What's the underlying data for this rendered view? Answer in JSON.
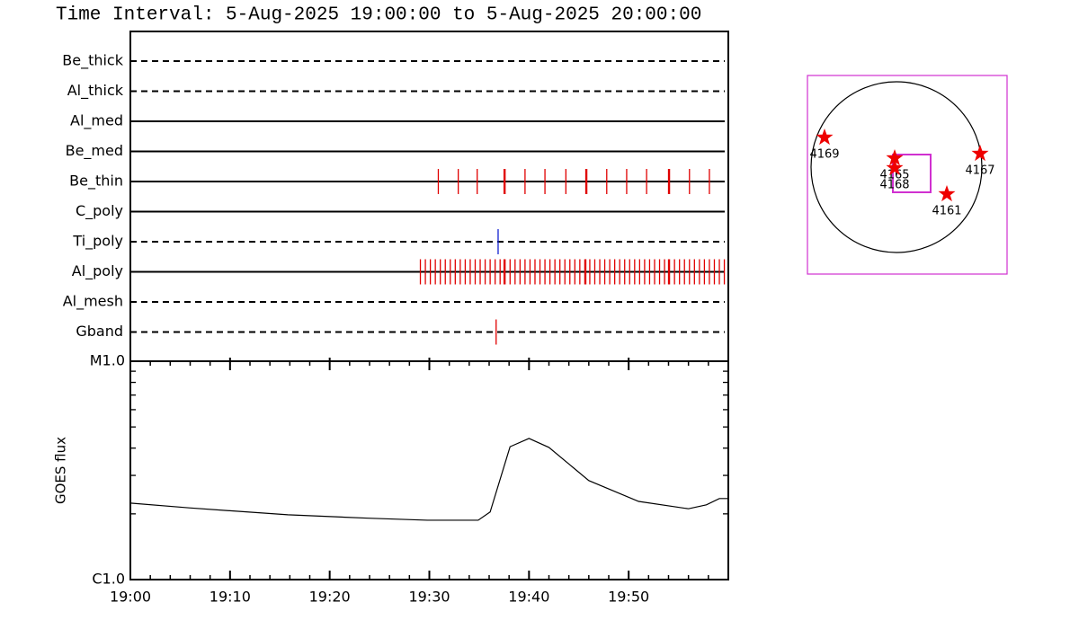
{
  "chart_data": [
    {
      "type": "timeline",
      "title": "Time Interval:  5-Aug-2025 19:00:00 to  5-Aug-2025 20:00:00",
      "categories": [
        "Be_thick",
        "Al_thick",
        "Al_med",
        "Be_med",
        "Be_thin",
        "C_poly",
        "Ti_poly",
        "Al_poly",
        "Al_mesh",
        "Gband"
      ],
      "line_styles": [
        "dashed",
        "dashed",
        "solid",
        "solid",
        "solid",
        "solid",
        "dashed",
        "solid",
        "dashed",
        "dashed"
      ],
      "event_colors": [
        "#e00000",
        "#e00000",
        "#e00000",
        "#e00000",
        "#e00000",
        "#e00000",
        "#1020d0",
        "#e00000",
        "#e00000",
        "#e00000"
      ],
      "xlim": [
        0,
        60
      ],
      "events": [
        [],
        [],
        [],
        [],
        [
          30.9,
          32.9,
          34.8,
          37.5,
          37.6,
          39.6,
          41.6,
          43.7,
          45.7,
          45.8,
          47.8,
          49.8,
          51.8,
          54.0,
          54.1,
          56.1,
          58.1
        ],
        [],
        [
          36.9
        ],
        [
          29.1,
          29.6,
          30.1,
          30.6,
          31.1,
          31.6,
          32.1,
          32.6,
          33.1,
          33.6,
          34.1,
          34.6,
          35.1,
          35.6,
          36.1,
          36.6,
          37.1,
          37.5,
          37.6,
          38.1,
          38.6,
          39.1,
          39.6,
          40.1,
          40.6,
          41.1,
          41.6,
          42.1,
          42.6,
          43.1,
          43.6,
          44.1,
          44.6,
          45.1,
          45.6,
          45.7,
          46.1,
          46.6,
          47.1,
          47.6,
          48.1,
          48.6,
          49.1,
          49.6,
          50.1,
          50.6,
          51.1,
          51.6,
          52.1,
          52.6,
          53.1,
          53.6,
          54.0,
          54.1,
          54.6,
          55.1,
          55.6,
          56.1,
          56.6,
          57.1,
          57.6,
          58.1,
          58.6,
          59.1,
          59.6
        ],
        [],
        [
          36.7
        ]
      ]
    },
    {
      "type": "line",
      "ylabel": "GOES flux",
      "log": true,
      "color": "#000000",
      "x": [
        0,
        5.9,
        15.8,
        23.9,
        29.8,
        34.9,
        36.1,
        38.1,
        40.0,
        42.0,
        46.0,
        51.0,
        56.0,
        57.8,
        59.1,
        60
      ],
      "values": [
        2.24e-06,
        2.13e-06,
        1.98e-06,
        1.91e-06,
        1.87e-06,
        1.87e-06,
        2.04e-06,
        4.06e-06,
        4.43e-06,
        4.03e-06,
        2.84e-06,
        2.28e-06,
        2.11e-06,
        2.2e-06,
        2.35e-06,
        2.35e-06
      ],
      "xlim": [
        0,
        60
      ],
      "xticks": [
        {
          "value": 0,
          "label": "19:00"
        },
        {
          "value": 10,
          "label": "19:10"
        },
        {
          "value": 20,
          "label": "19:20"
        },
        {
          "value": 30,
          "label": "19:30"
        },
        {
          "value": 40,
          "label": "19:40"
        },
        {
          "value": 50,
          "label": "19:50"
        }
      ],
      "ylim": [
        1e-06,
        1e-05
      ],
      "yticks": [
        {
          "value": 1e-06,
          "label": "C1.0"
        },
        {
          "value": 1e-05,
          "label": "M1.0"
        }
      ]
    },
    {
      "type": "map",
      "xlim": [
        -990,
        1230
      ],
      "ylim": [
        -1190,
        1020
      ],
      "disk_radius": 950,
      "frame_color": "#d030d0",
      "marker_color": "#ee0000",
      "fov": {
        "xlim": [
          -40,
          380
        ],
        "ylim": [
          -280,
          140
        ]
      },
      "markers": [
        {
          "label": "4169",
          "x": -800,
          "y": 330
        },
        {
          "label": "4165",
          "x": -20,
          "y": 100
        },
        {
          "label": "4168",
          "x": -20,
          "y": -10
        },
        {
          "label": "4167",
          "x": 930,
          "y": 150
        },
        {
          "label": "4161",
          "x": 560,
          "y": -300
        }
      ]
    }
  ]
}
